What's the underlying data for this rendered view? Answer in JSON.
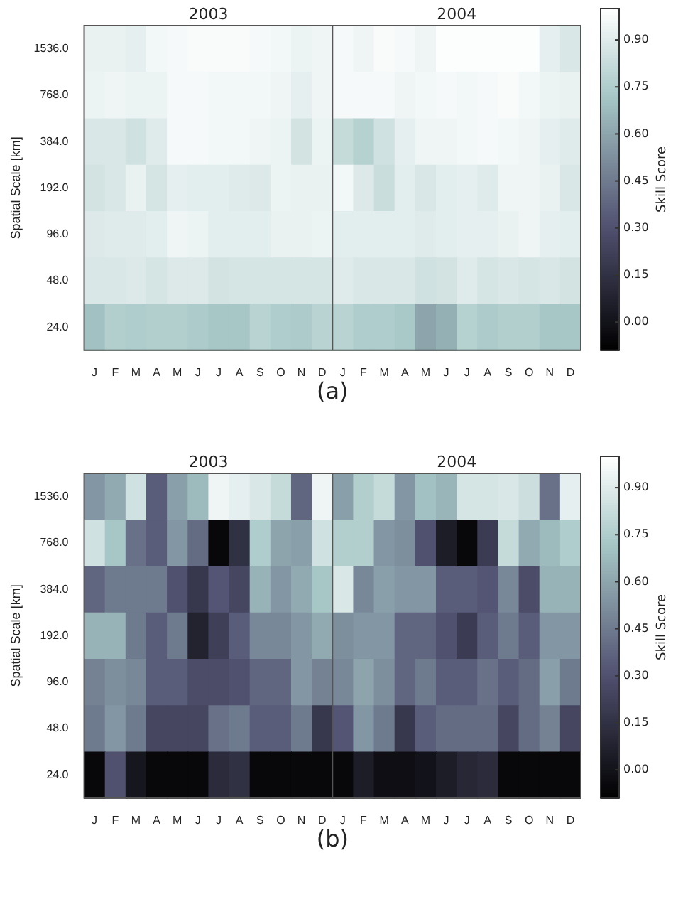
{
  "chart_data": [
    {
      "type": "heatmap",
      "ylabel": "Spatial Scale [km]",
      "clabel": "Skill Score",
      "annotations": [
        "2003",
        "2004",
        "(a)"
      ],
      "categories": [
        "J",
        "F",
        "M",
        "A",
        "M",
        "J",
        "J",
        "A",
        "S",
        "O",
        "N",
        "D",
        "J",
        "F",
        "M",
        "A",
        "M",
        "J",
        "J",
        "A",
        "S",
        "O",
        "N",
        "D"
      ],
      "y_categories": [
        "1536.0",
        "768.0",
        "384.0",
        "192.0",
        "96.0",
        "48.0",
        "24.0"
      ],
      "clim": [
        -0.09,
        1.0
      ],
      "cticks": [
        {
          "value": 0,
          "label": "0.00"
        },
        {
          "value": 0.15,
          "label": "0.15"
        },
        {
          "value": 0.3,
          "label": "0.30"
        },
        {
          "value": 0.45,
          "label": "0.45"
        },
        {
          "value": 0.6,
          "label": "0.60"
        },
        {
          "value": 0.75,
          "label": "0.75"
        },
        {
          "value": 0.9,
          "label": "0.90"
        }
      ],
      "cells": [
        [
          0.93,
          0.93,
          0.92,
          0.96,
          0.97,
          0.98,
          0.98,
          0.98,
          0.97,
          0.96,
          0.94,
          0.95,
          0.97,
          0.95,
          0.98,
          0.97,
          0.95,
          0.99,
          0.99,
          0.99,
          0.99,
          0.99,
          0.92,
          0.88
        ],
        [
          0.94,
          0.95,
          0.94,
          0.94,
          0.97,
          0.97,
          0.96,
          0.96,
          0.96,
          0.95,
          0.92,
          0.95,
          0.97,
          0.97,
          0.97,
          0.95,
          0.96,
          0.97,
          0.96,
          0.97,
          0.98,
          0.96,
          0.94,
          0.93
        ],
        [
          0.88,
          0.88,
          0.85,
          0.9,
          0.97,
          0.97,
          0.96,
          0.96,
          0.95,
          0.94,
          0.86,
          0.94,
          0.82,
          0.77,
          0.85,
          0.92,
          0.95,
          0.95,
          0.96,
          0.97,
          0.96,
          0.95,
          0.92,
          0.9
        ],
        [
          0.86,
          0.88,
          0.93,
          0.87,
          0.92,
          0.91,
          0.91,
          0.9,
          0.89,
          0.94,
          0.93,
          0.93,
          0.96,
          0.89,
          0.83,
          0.91,
          0.88,
          0.91,
          0.92,
          0.9,
          0.95,
          0.95,
          0.93,
          0.88
        ],
        [
          0.89,
          0.9,
          0.9,
          0.91,
          0.95,
          0.94,
          0.91,
          0.91,
          0.91,
          0.93,
          0.93,
          0.94,
          0.91,
          0.91,
          0.91,
          0.91,
          0.9,
          0.91,
          0.92,
          0.92,
          0.93,
          0.95,
          0.92,
          0.91
        ],
        [
          0.88,
          0.88,
          0.89,
          0.87,
          0.89,
          0.89,
          0.86,
          0.87,
          0.87,
          0.87,
          0.87,
          0.87,
          0.9,
          0.88,
          0.88,
          0.88,
          0.85,
          0.86,
          0.9,
          0.87,
          0.88,
          0.87,
          0.88,
          0.86
        ],
        [
          0.7,
          0.76,
          0.75,
          0.76,
          0.76,
          0.74,
          0.72,
          0.72,
          0.78,
          0.75,
          0.74,
          0.78,
          0.78,
          0.75,
          0.75,
          0.73,
          0.6,
          0.64,
          0.77,
          0.74,
          0.76,
          0.76,
          0.72,
          0.72
        ]
      ]
    },
    {
      "type": "heatmap",
      "ylabel": "Spatial Scale [km]",
      "clabel": "Skill Score",
      "annotations": [
        "2003",
        "2004",
        "(b)"
      ],
      "categories": [
        "J",
        "F",
        "M",
        "A",
        "M",
        "J",
        "J",
        "A",
        "S",
        "O",
        "N",
        "D",
        "J",
        "F",
        "M",
        "A",
        "M",
        "J",
        "J",
        "A",
        "S",
        "O",
        "N",
        "D"
      ],
      "y_categories": [
        "1536.0",
        "768.0",
        "384.0",
        "192.0",
        "96.0",
        "48.0",
        "24.0"
      ],
      "clim": [
        -0.09,
        1.0
      ],
      "cticks": [
        {
          "value": 0,
          "label": "0.00"
        },
        {
          "value": 0.15,
          "label": "0.15"
        },
        {
          "value": 0.3,
          "label": "0.30"
        },
        {
          "value": 0.45,
          "label": "0.45"
        },
        {
          "value": 0.6,
          "label": "0.60"
        },
        {
          "value": 0.75,
          "label": "0.75"
        },
        {
          "value": 0.9,
          "label": "0.90"
        }
      ],
      "cells": [
        [
          0.55,
          0.62,
          0.85,
          0.35,
          0.58,
          0.68,
          0.95,
          0.92,
          0.88,
          0.82,
          0.38,
          0.95,
          0.58,
          0.76,
          0.82,
          0.55,
          0.7,
          0.66,
          0.87,
          0.87,
          0.88,
          0.84,
          0.42,
          0.92
        ],
        [
          0.85,
          0.72,
          0.42,
          0.35,
          0.55,
          0.4,
          -0.05,
          0.15,
          0.75,
          0.6,
          0.58,
          0.85,
          0.76,
          0.76,
          0.55,
          0.52,
          0.3,
          0.05,
          -0.05,
          0.2,
          0.82,
          0.62,
          0.68,
          0.75
        ],
        [
          0.38,
          0.45,
          0.45,
          0.45,
          0.3,
          0.18,
          0.32,
          0.25,
          0.65,
          0.55,
          0.62,
          0.72,
          0.88,
          0.5,
          0.58,
          0.55,
          0.55,
          0.35,
          0.35,
          0.32,
          0.5,
          0.28,
          0.65,
          0.65
        ],
        [
          0.65,
          0.65,
          0.45,
          0.35,
          0.45,
          0.08,
          0.22,
          0.35,
          0.5,
          0.5,
          0.55,
          0.62,
          0.52,
          0.55,
          0.55,
          0.38,
          0.38,
          0.3,
          0.2,
          0.35,
          0.45,
          0.35,
          0.55,
          0.55
        ],
        [
          0.48,
          0.52,
          0.5,
          0.35,
          0.35,
          0.28,
          0.28,
          0.3,
          0.38,
          0.38,
          0.55,
          0.48,
          0.5,
          0.6,
          0.52,
          0.38,
          0.45,
          0.35,
          0.35,
          0.42,
          0.35,
          0.4,
          0.58,
          0.45
        ],
        [
          0.45,
          0.55,
          0.45,
          0.25,
          0.25,
          0.25,
          0.42,
          0.45,
          0.35,
          0.35,
          0.45,
          0.18,
          0.32,
          0.55,
          0.45,
          0.18,
          0.35,
          0.4,
          0.4,
          0.4,
          0.25,
          0.4,
          0.48,
          0.25
        ],
        [
          -0.05,
          0.3,
          0.02,
          -0.05,
          -0.05,
          -0.05,
          0.12,
          0.15,
          -0.05,
          -0.05,
          -0.05,
          -0.05,
          -0.05,
          0.05,
          -0.02,
          -0.02,
          0,
          0.05,
          0.1,
          0.12,
          -0.05,
          -0.05,
          -0.05,
          -0.05
        ]
      ]
    }
  ]
}
